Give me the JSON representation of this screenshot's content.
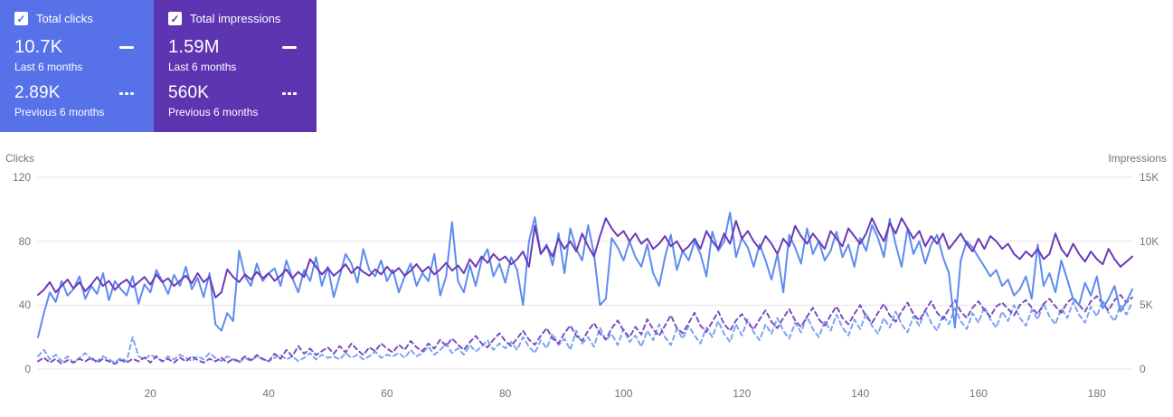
{
  "cards": [
    {
      "label": "Total clicks",
      "primary_value": "10.7K",
      "primary_caption": "Last 6 months",
      "secondary_value": "2.89K",
      "secondary_caption": "Previous 6 months",
      "color": "#5771e8"
    },
    {
      "label": "Total impressions",
      "primary_value": "1.59M",
      "primary_caption": "Last 6 months",
      "secondary_value": "560K",
      "secondary_caption": "Previous 6 months",
      "color": "#5e35b1"
    }
  ],
  "chart_data": {
    "type": "line",
    "x_range": [
      1,
      186
    ],
    "x_ticks": [
      20,
      40,
      60,
      80,
      100,
      120,
      140,
      160,
      180
    ],
    "grid_color": "#e3e3e3",
    "left_axis": {
      "title": "Clicks",
      "ticks": [
        0,
        40,
        80,
        120
      ],
      "tick_labels": [
        "0",
        "40",
        "80",
        "120"
      ],
      "max": 120
    },
    "right_axis": {
      "title": "Impressions",
      "ticks": [
        0,
        5000,
        10000,
        15000
      ],
      "tick_labels": [
        "0",
        "5K",
        "10K",
        "15K"
      ],
      "max": 15000
    },
    "series": [
      {
        "name": "Clicks - Previous 6 months",
        "axis": "left",
        "style": "dashed",
        "color": "#7ca4f2",
        "values": [
          8,
          12,
          6,
          9,
          5,
          8,
          4,
          7,
          10,
          6,
          5,
          8,
          6,
          4,
          7,
          5,
          20,
          8,
          6,
          9,
          7,
          5,
          8,
          6,
          9,
          7,
          5,
          8,
          6,
          10,
          7,
          5,
          8,
          6,
          4,
          7,
          5,
          8,
          6,
          5,
          7,
          9,
          6,
          8,
          5,
          7,
          10,
          6,
          9,
          7,
          8,
          6,
          10,
          7,
          9,
          6,
          8,
          11,
          7,
          9,
          8,
          10,
          7,
          12,
          8,
          10,
          14,
          9,
          12,
          16,
          10,
          13,
          9,
          15,
          11,
          14,
          18,
          12,
          16,
          13,
          17,
          12,
          20,
          14,
          10,
          18,
          13,
          22,
          15,
          19,
          12,
          24,
          16,
          20,
          14,
          26,
          18,
          22,
          15,
          25,
          17,
          21,
          14,
          24,
          18,
          28,
          20,
          15,
          25,
          19,
          27,
          21,
          16,
          26,
          20,
          30,
          22,
          17,
          28,
          21,
          31,
          23,
          18,
          28,
          22,
          32,
          24,
          19,
          29,
          23,
          33,
          25,
          20,
          30,
          24,
          34,
          26,
          21,
          31,
          25,
          35,
          27,
          22,
          32,
          26,
          36,
          28,
          23,
          33,
          27,
          37,
          29,
          24,
          34,
          28,
          38,
          30,
          25,
          35,
          29,
          39,
          31,
          26,
          36,
          30,
          40,
          32,
          27,
          37,
          31,
          41,
          33,
          28,
          38,
          32,
          42,
          34,
          29,
          39,
          33,
          43,
          35,
          30,
          40,
          34,
          42
        ]
      },
      {
        "name": "Impressions - Previous 6 months",
        "axis": "right",
        "style": "dashed",
        "color": "#7a4fc0",
        "values": [
          600,
          900,
          500,
          800,
          400,
          700,
          500,
          800,
          600,
          900,
          500,
          800,
          600,
          400,
          700,
          500,
          800,
          600,
          900,
          500,
          1000,
          600,
          800,
          500,
          900,
          600,
          1000,
          700,
          500,
          800,
          600,
          900,
          500,
          800,
          600,
          1000,
          700,
          1100,
          800,
          600,
          1200,
          800,
          1500,
          1000,
          1800,
          1200,
          1600,
          1100,
          1400,
          1700,
          1200,
          1800,
          1300,
          2000,
          1500,
          1100,
          1700,
          1400,
          2000,
          1600,
          1300,
          1900,
          1500,
          2200,
          1700,
          1400,
          2000,
          1600,
          2300,
          1800,
          2400,
          1900,
          1500,
          2100,
          2600,
          2000,
          1700,
          2300,
          2800,
          2200,
          1800,
          2400,
          3000,
          2300,
          1900,
          2600,
          3200,
          2400,
          2000,
          2800,
          3400,
          2600,
          2200,
          3000,
          3600,
          2800,
          2300,
          3200,
          3800,
          3000,
          2500,
          3300,
          2700,
          3900,
          3100,
          2600,
          3400,
          4200,
          3200,
          2800,
          3600,
          4400,
          3400,
          2900,
          3700,
          4500,
          3500,
          3000,
          3800,
          4300,
          3600,
          3100,
          3900,
          4600,
          3700,
          3200,
          4000,
          4700,
          3800,
          3300,
          4100,
          4800,
          3900,
          3400,
          4200,
          4900,
          4000,
          3500,
          4300,
          5000,
          4100,
          3600,
          4400,
          5100,
          4200,
          3700,
          4500,
          5200,
          4300,
          3800,
          4600,
          5300,
          4400,
          3900,
          4700,
          5400,
          4500,
          4000,
          4800,
          5300,
          4600,
          4100,
          4900,
          5200,
          4700,
          4200,
          5000,
          5400,
          4800,
          4300,
          5100,
          5500,
          4900,
          4400,
          5200,
          5600,
          5000,
          4500,
          5300,
          5700,
          5100,
          4600,
          5400,
          5800,
          5200,
          5600
        ]
      },
      {
        "name": "Clicks - Last 6 months",
        "axis": "left",
        "style": "solid",
        "color": "#5e8bf0",
        "values": [
          20,
          35,
          48,
          42,
          55,
          46,
          50,
          58,
          44,
          52,
          47,
          60,
          43,
          55,
          50,
          46,
          58,
          41,
          53,
          48,
          62,
          55,
          47,
          59,
          52,
          64,
          50,
          57,
          45,
          60,
          28,
          24,
          35,
          30,
          74,
          58,
          52,
          66,
          55,
          60,
          63,
          52,
          68,
          57,
          48,
          62,
          55,
          70,
          52,
          64,
          45,
          58,
          72,
          66,
          54,
          75,
          62,
          58,
          68,
          55,
          62,
          48,
          58,
          66,
          52,
          60,
          55,
          72,
          46,
          58,
          92,
          55,
          48,
          65,
          52,
          68,
          75,
          58,
          66,
          54,
          70,
          62,
          40,
          80,
          95,
          72,
          78,
          65,
          85,
          60,
          88,
          75,
          68,
          90,
          72,
          40,
          44,
          82,
          76,
          68,
          80,
          70,
          64,
          78,
          60,
          52,
          70,
          84,
          62,
          74,
          68,
          80,
          72,
          58,
          86,
          74,
          80,
          98,
          70,
          82,
          76,
          64,
          78,
          68,
          56,
          72,
          48,
          84,
          76,
          66,
          88,
          72,
          80,
          68,
          74,
          86,
          70,
          78,
          64,
          82,
          74,
          90,
          82,
          70,
          94,
          78,
          64,
          88,
          72,
          80,
          66,
          78,
          84,
          70,
          60,
          26,
          68,
          80,
          76,
          70,
          64,
          58,
          62,
          52,
          56,
          46,
          50,
          58,
          44,
          78,
          52,
          60,
          48,
          68,
          56,
          44,
          40,
          54,
          46,
          58,
          38,
          44,
          52,
          36,
          42,
          50
        ]
      },
      {
        "name": "Impressions - Last 6 months",
        "axis": "right",
        "style": "solid",
        "color": "#6a3ab8",
        "values": [
          5800,
          6200,
          6800,
          6000,
          6500,
          7000,
          6300,
          6800,
          6100,
          6600,
          7200,
          6500,
          6900,
          6200,
          6700,
          7000,
          6400,
          6800,
          7200,
          6600,
          7400,
          6800,
          7100,
          6500,
          6900,
          7300,
          6700,
          7500,
          6800,
          7200,
          5600,
          6000,
          7800,
          7200,
          6800,
          7400,
          7000,
          7600,
          7100,
          7500,
          6900,
          7300,
          7800,
          7100,
          7600,
          7200,
          8600,
          8000,
          7400,
          7900,
          7300,
          7700,
          8200,
          7500,
          8000,
          7600,
          7300,
          7800,
          7400,
          8000,
          7500,
          7900,
          7300,
          7700,
          8200,
          7600,
          8000,
          7400,
          7800,
          8300,
          7700,
          8100,
          7500,
          8600,
          8000,
          8800,
          8300,
          9000,
          8500,
          8800,
          8200,
          8600,
          9200,
          8000,
          11200,
          9000,
          9600,
          8800,
          10200,
          9400,
          10000,
          9200,
          10600,
          9600,
          8800,
          10400,
          11800,
          11000,
          10400,
          10800,
          10000,
          10600,
          9800,
          10200,
          9400,
          9800,
          10400,
          9600,
          10000,
          9200,
          9600,
          10200,
          9400,
          10800,
          10000,
          9400,
          10600,
          9800,
          11600,
          10200,
          10800,
          10000,
          9400,
          10400,
          9800,
          9000,
          10200,
          9600,
          11200,
          10400,
          9800,
          10600,
          10000,
          9400,
          10800,
          10200,
          9600,
          11000,
          10400,
          9800,
          10600,
          11800,
          10800,
          10000,
          11400,
          10600,
          11800,
          11000,
          10200,
          10800,
          9600,
          10400,
          9800,
          10600,
          9400,
          10000,
          10600,
          9800,
          9200,
          10200,
          9400,
          10400,
          10000,
          9400,
          9800,
          9000,
          8600,
          9200,
          8800,
          9400,
          8600,
          9000,
          10600,
          9400,
          8800,
          9800,
          9000,
          8400,
          9200,
          8600,
          8200,
          9400,
          8600,
          8000,
          8400,
          8800
        ]
      }
    ]
  }
}
